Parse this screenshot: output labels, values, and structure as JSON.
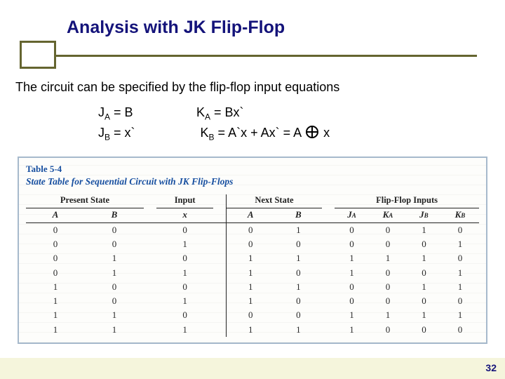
{
  "title": "Analysis with JK Flip-Flop",
  "intro": "The circuit can be specified by the flip-flop input equations",
  "equations": {
    "ja_label": "J",
    "ja_sub": "A",
    "ja_rhs": " = B",
    "jb_label": "J",
    "jb_sub": "B",
    "jb_rhs": " = x`",
    "ka_label": "K",
    "ka_sub": "A",
    "ka_rhs": " = Bx`",
    "kb_label": "K",
    "kb_sub": "B",
    "kb_rhs_pre": " = A`x + Ax`  = A ",
    "kb_rhs_post": " x"
  },
  "table": {
    "caption": "Table 5-4",
    "subtitle": "State Table for Sequential Circuit with JK Flip-Flops",
    "group_headers": [
      "Present State",
      "Input",
      "Next State",
      "Flip-Flop Inputs"
    ],
    "sub_headers": {
      "present": [
        "A",
        "B"
      ],
      "input": [
        "x"
      ],
      "next": [
        "A",
        "B"
      ],
      "ff": [
        {
          "base": "J",
          "sub": "A"
        },
        {
          "base": "K",
          "sub": "A"
        },
        {
          "base": "J",
          "sub": "B"
        },
        {
          "base": "K",
          "sub": "B"
        }
      ]
    },
    "rows": [
      [
        "0",
        "0",
        "0",
        "0",
        "1",
        "0",
        "0",
        "1",
        "0"
      ],
      [
        "0",
        "0",
        "1",
        "0",
        "0",
        "0",
        "0",
        "0",
        "1"
      ],
      [
        "0",
        "1",
        "0",
        "1",
        "1",
        "1",
        "1",
        "1",
        "0"
      ],
      [
        "0",
        "1",
        "1",
        "1",
        "0",
        "1",
        "0",
        "0",
        "1"
      ],
      [
        "1",
        "0",
        "0",
        "1",
        "1",
        "0",
        "0",
        "1",
        "1"
      ],
      [
        "1",
        "0",
        "1",
        "1",
        "0",
        "0",
        "0",
        "0",
        "0"
      ],
      [
        "1",
        "1",
        "0",
        "0",
        "0",
        "1",
        "1",
        "1",
        "1"
      ],
      [
        "1",
        "1",
        "1",
        "1",
        "1",
        "1",
        "0",
        "0",
        "0"
      ]
    ]
  },
  "page_number": "32",
  "colors": {
    "title": "#14137a",
    "accent": "#656530",
    "table_border": "#a6b9cc",
    "table_heading": "#174fa0",
    "body_text": "#000000"
  }
}
